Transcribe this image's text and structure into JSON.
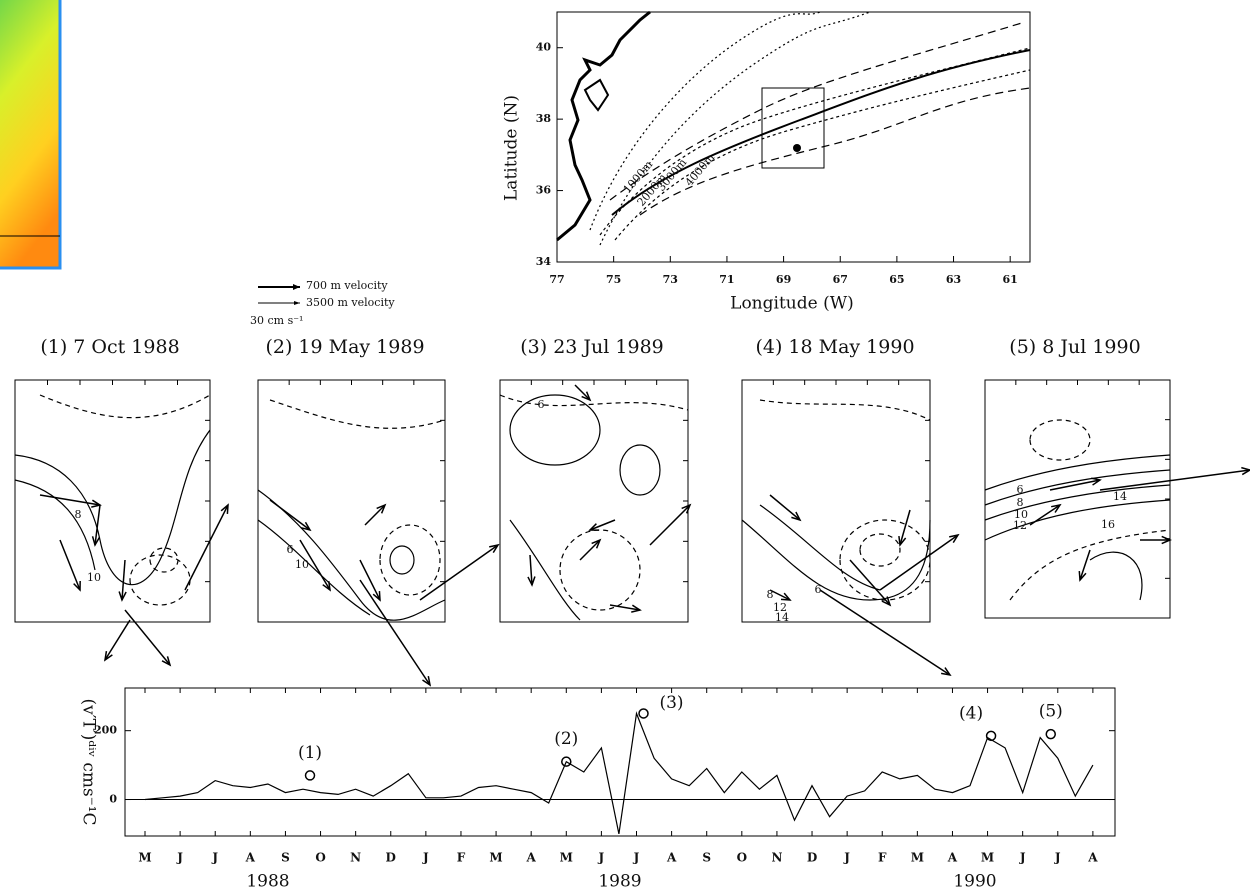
{
  "map": {
    "xlabel": "Longitude (W)",
    "ylabel": "Latitude (N)",
    "xlim": [
      77,
      60.3
    ],
    "ylim": [
      34,
      41
    ],
    "xticks": [
      77,
      75,
      73,
      71,
      69,
      67,
      65,
      63,
      61
    ],
    "yticks": [
      34,
      36,
      38,
      40
    ],
    "contour_labels": [
      "1000m",
      "2000m",
      "3000m",
      "4000m"
    ]
  },
  "legend": {
    "items": [
      "700 m velocity",
      "3500 m velocity"
    ],
    "scale": "30 cm s⁻¹"
  },
  "panels": [
    {
      "title": "(1) 7 Oct 1988",
      "contour_labels": [
        "8",
        "10"
      ]
    },
    {
      "title": "(2) 19 May 1989",
      "contour_labels": [
        "6",
        "10"
      ]
    },
    {
      "title": "(3) 23 Jul 1989",
      "contour_labels": [
        "6"
      ]
    },
    {
      "title": "(4) 18 May 1990",
      "contour_labels": [
        "6",
        "8",
        "12",
        "14"
      ]
    },
    {
      "title": "(5) 8 Jul 1990",
      "contour_labels": [
        "6",
        "8",
        "10",
        "12",
        "14",
        "16"
      ]
    }
  ],
  "chart_data": {
    "type": "line",
    "ylabel": "(v′T′)ᵈⁱᵛ cms⁻¹C",
    "xlim": [
      -0.57,
      27.63
    ],
    "ylim": [
      -106,
      324
    ],
    "yticks": [
      0,
      200
    ],
    "xticks": [
      {
        "value": 0,
        "label": "M"
      },
      {
        "value": 1,
        "label": "J"
      },
      {
        "value": 2,
        "label": "J"
      },
      {
        "value": 3,
        "label": "A"
      },
      {
        "value": 4,
        "label": "S"
      },
      {
        "value": 5,
        "label": "O"
      },
      {
        "value": 6,
        "label": "N"
      },
      {
        "value": 7,
        "label": "D"
      },
      {
        "value": 8,
        "label": "J"
      },
      {
        "value": 9,
        "label": "F"
      },
      {
        "value": 10,
        "label": "M"
      },
      {
        "value": 11,
        "label": "A"
      },
      {
        "value": 12,
        "label": "M"
      },
      {
        "value": 13,
        "label": "J"
      },
      {
        "value": 14,
        "label": "J"
      },
      {
        "value": 15,
        "label": "A"
      },
      {
        "value": 16,
        "label": "S"
      },
      {
        "value": 17,
        "label": "O"
      },
      {
        "value": 18,
        "label": "N"
      },
      {
        "value": 19,
        "label": "D"
      },
      {
        "value": 20,
        "label": "J"
      },
      {
        "value": 21,
        "label": "F"
      },
      {
        "value": 22,
        "label": "M"
      },
      {
        "value": 23,
        "label": "A"
      },
      {
        "value": 24,
        "label": "M"
      },
      {
        "value": 25,
        "label": "J"
      },
      {
        "value": 26,
        "label": "J"
      },
      {
        "value": 27,
        "label": "A"
      }
    ],
    "years": [
      "1988",
      "1989",
      "1990"
    ],
    "x": [
      0,
      0.5,
      1,
      1.5,
      2,
      2.5,
      3,
      3.5,
      4,
      4.5,
      5,
      5.5,
      6,
      6.5,
      7,
      7.5,
      8,
      8.5,
      9,
      9.5,
      10,
      10.5,
      11,
      11.5,
      12,
      12.5,
      13,
      13.5,
      14,
      14.5,
      15,
      15.5,
      16,
      16.5,
      17,
      17.5,
      18,
      18.5,
      19,
      19.5,
      20,
      20.5,
      21,
      21.5,
      22,
      22.5,
      23,
      23.5,
      24,
      24.5,
      25,
      25.5,
      26,
      26.5,
      27
    ],
    "values": [
      0,
      5,
      10,
      20,
      55,
      40,
      35,
      45,
      20,
      30,
      20,
      15,
      30,
      10,
      40,
      75,
      5,
      5,
      10,
      35,
      40,
      30,
      20,
      -10,
      110,
      80,
      150,
      -100,
      250,
      120,
      60,
      40,
      90,
      20,
      80,
      30,
      70,
      -60,
      40,
      -50,
      10,
      25,
      80,
      60,
      70,
      30,
      20,
      40,
      180,
      150,
      20,
      180,
      120,
      10,
      100
    ],
    "events": [
      {
        "label": "(1)",
        "x": 4.7,
        "value": 70
      },
      {
        "label": "(2)",
        "x": 12.0,
        "value": 110
      },
      {
        "label": "(3)",
        "x": 14.2,
        "value": 250
      },
      {
        "label": "(4)",
        "x": 24.1,
        "value": 185
      },
      {
        "label": "(5)",
        "x": 25.8,
        "value": 190
      }
    ]
  }
}
